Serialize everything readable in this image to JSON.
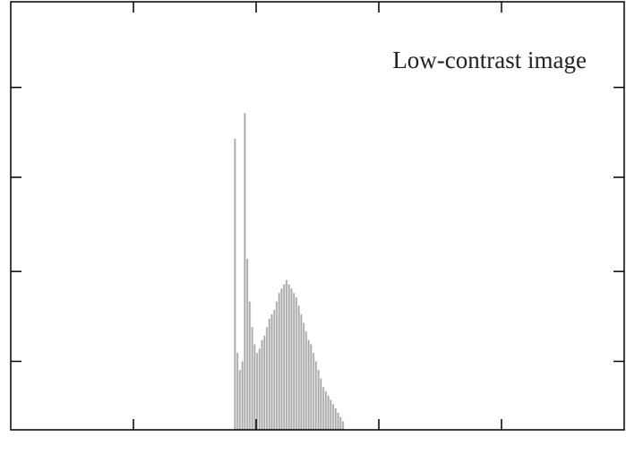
{
  "chart_data": {
    "type": "histogram",
    "title": "Low-contrast image",
    "bins": [
      91,
      92,
      93,
      94,
      95,
      96,
      97,
      98,
      99,
      100,
      101,
      102,
      103,
      104,
      105,
      106,
      107,
      108,
      109,
      110,
      111,
      112,
      113,
      114,
      115,
      116,
      117,
      118,
      119,
      120,
      121,
      122,
      123,
      124,
      125,
      126,
      127,
      128,
      129,
      130,
      131,
      132,
      133,
      134,
      135,
      136
    ],
    "values": [
      68,
      18,
      14,
      16,
      74,
      40,
      30,
      24,
      20,
      18,
      19,
      21,
      22,
      24,
      26,
      27,
      28,
      30,
      32,
      33,
      34,
      35,
      34,
      33,
      32,
      31,
      29,
      27,
      25,
      23,
      21,
      20,
      18,
      16,
      14,
      12,
      10,
      9,
      8,
      7,
      6,
      5,
      4,
      3,
      2
    ],
    "color": "#a8a8a8",
    "xlim": [
      0,
      250
    ],
    "xticks": [
      50,
      100,
      150,
      200
    ],
    "ylim": [
      0,
      100
    ],
    "yticks": [
      16,
      37,
      59,
      80
    ]
  }
}
